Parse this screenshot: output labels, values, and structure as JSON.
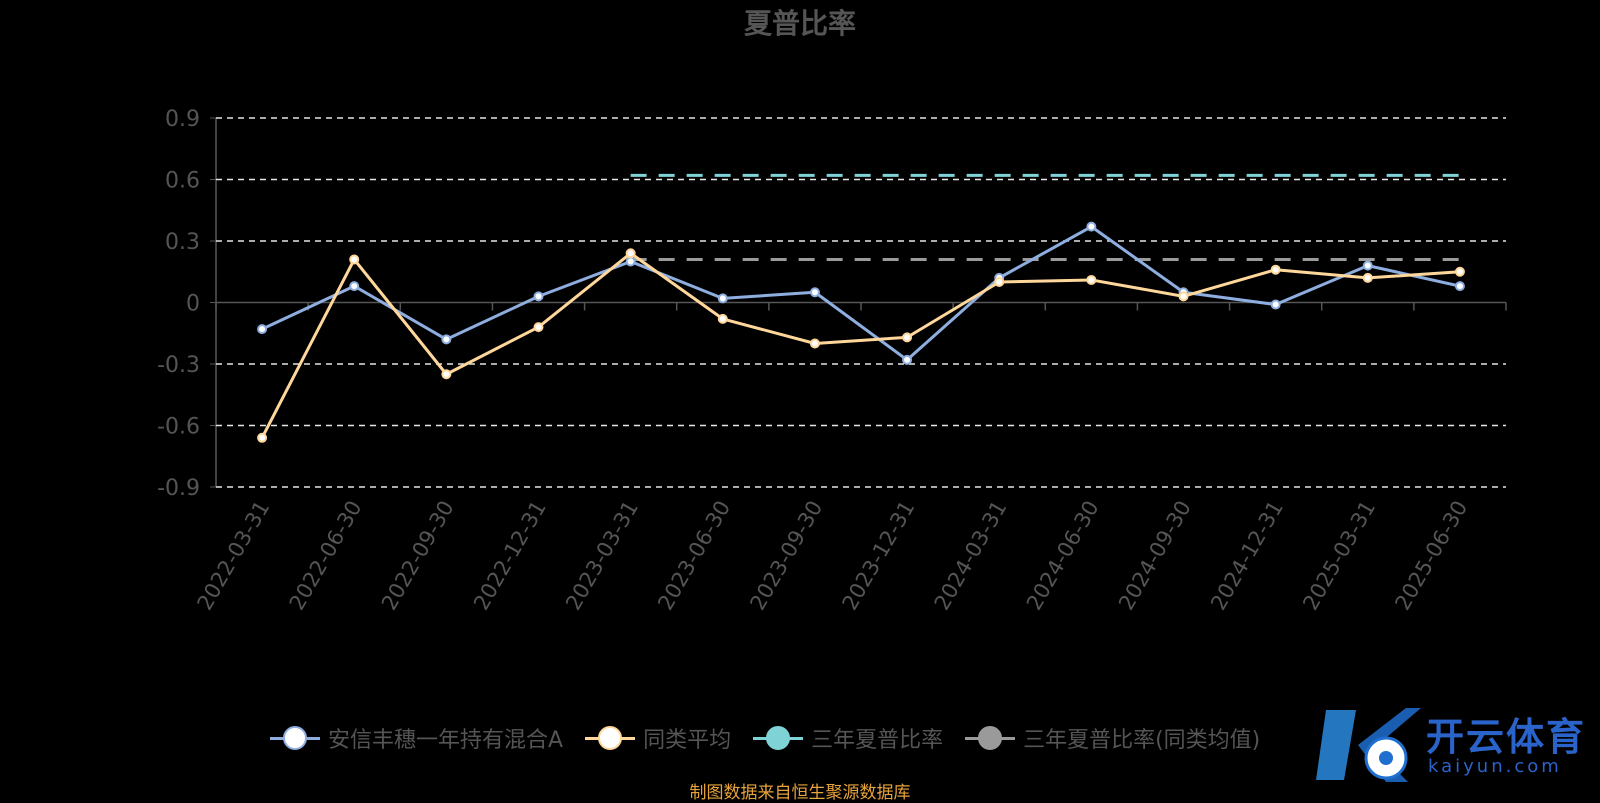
{
  "chart_data": {
    "type": "line",
    "title": "夏普比率",
    "categories": [
      "2022-03-31",
      "2022-06-30",
      "2022-09-30",
      "2022-12-31",
      "2023-03-31",
      "2023-06-30",
      "2023-09-30",
      "2023-12-31",
      "2024-03-31",
      "2024-06-30",
      "2024-09-30",
      "2024-12-31",
      "2025-03-31",
      "2025-06-30"
    ],
    "yticks": [
      "0.9",
      "0.6",
      "0.3",
      "0",
      "-0.3",
      "-0.6",
      "-0.9"
    ],
    "ylim": [
      -0.9,
      0.9
    ],
    "grid": true,
    "legend_position": "bottom",
    "series": [
      {
        "name": "安信丰穗一年持有混合A",
        "color": "#8eaee0",
        "values": [
          -0.13,
          0.08,
          -0.18,
          0.03,
          0.2,
          0.02,
          0.05,
          -0.28,
          0.12,
          0.37,
          0.05,
          -0.01,
          0.18,
          0.08
        ]
      },
      {
        "name": "同类平均",
        "color": "#ffd79b",
        "values": [
          -0.66,
          0.21,
          -0.35,
          -0.12,
          0.24,
          -0.08,
          -0.2,
          -0.17,
          0.1,
          0.11,
          0.03,
          0.16,
          0.12,
          0.15
        ]
      },
      {
        "name": "三年夏普比率",
        "color": "#7fd3d6",
        "dashed": true,
        "start_index": 4,
        "value": 0.62
      },
      {
        "name": "三年夏普比率(同类均值)",
        "color": "#9a9a9a",
        "dashed": true,
        "start_index": 4,
        "value": 0.21
      }
    ]
  },
  "source_note": "制图数据来自恒生聚源数据库",
  "watermark": {
    "title": "开云体育",
    "subtitle": "kaiyun.com"
  }
}
